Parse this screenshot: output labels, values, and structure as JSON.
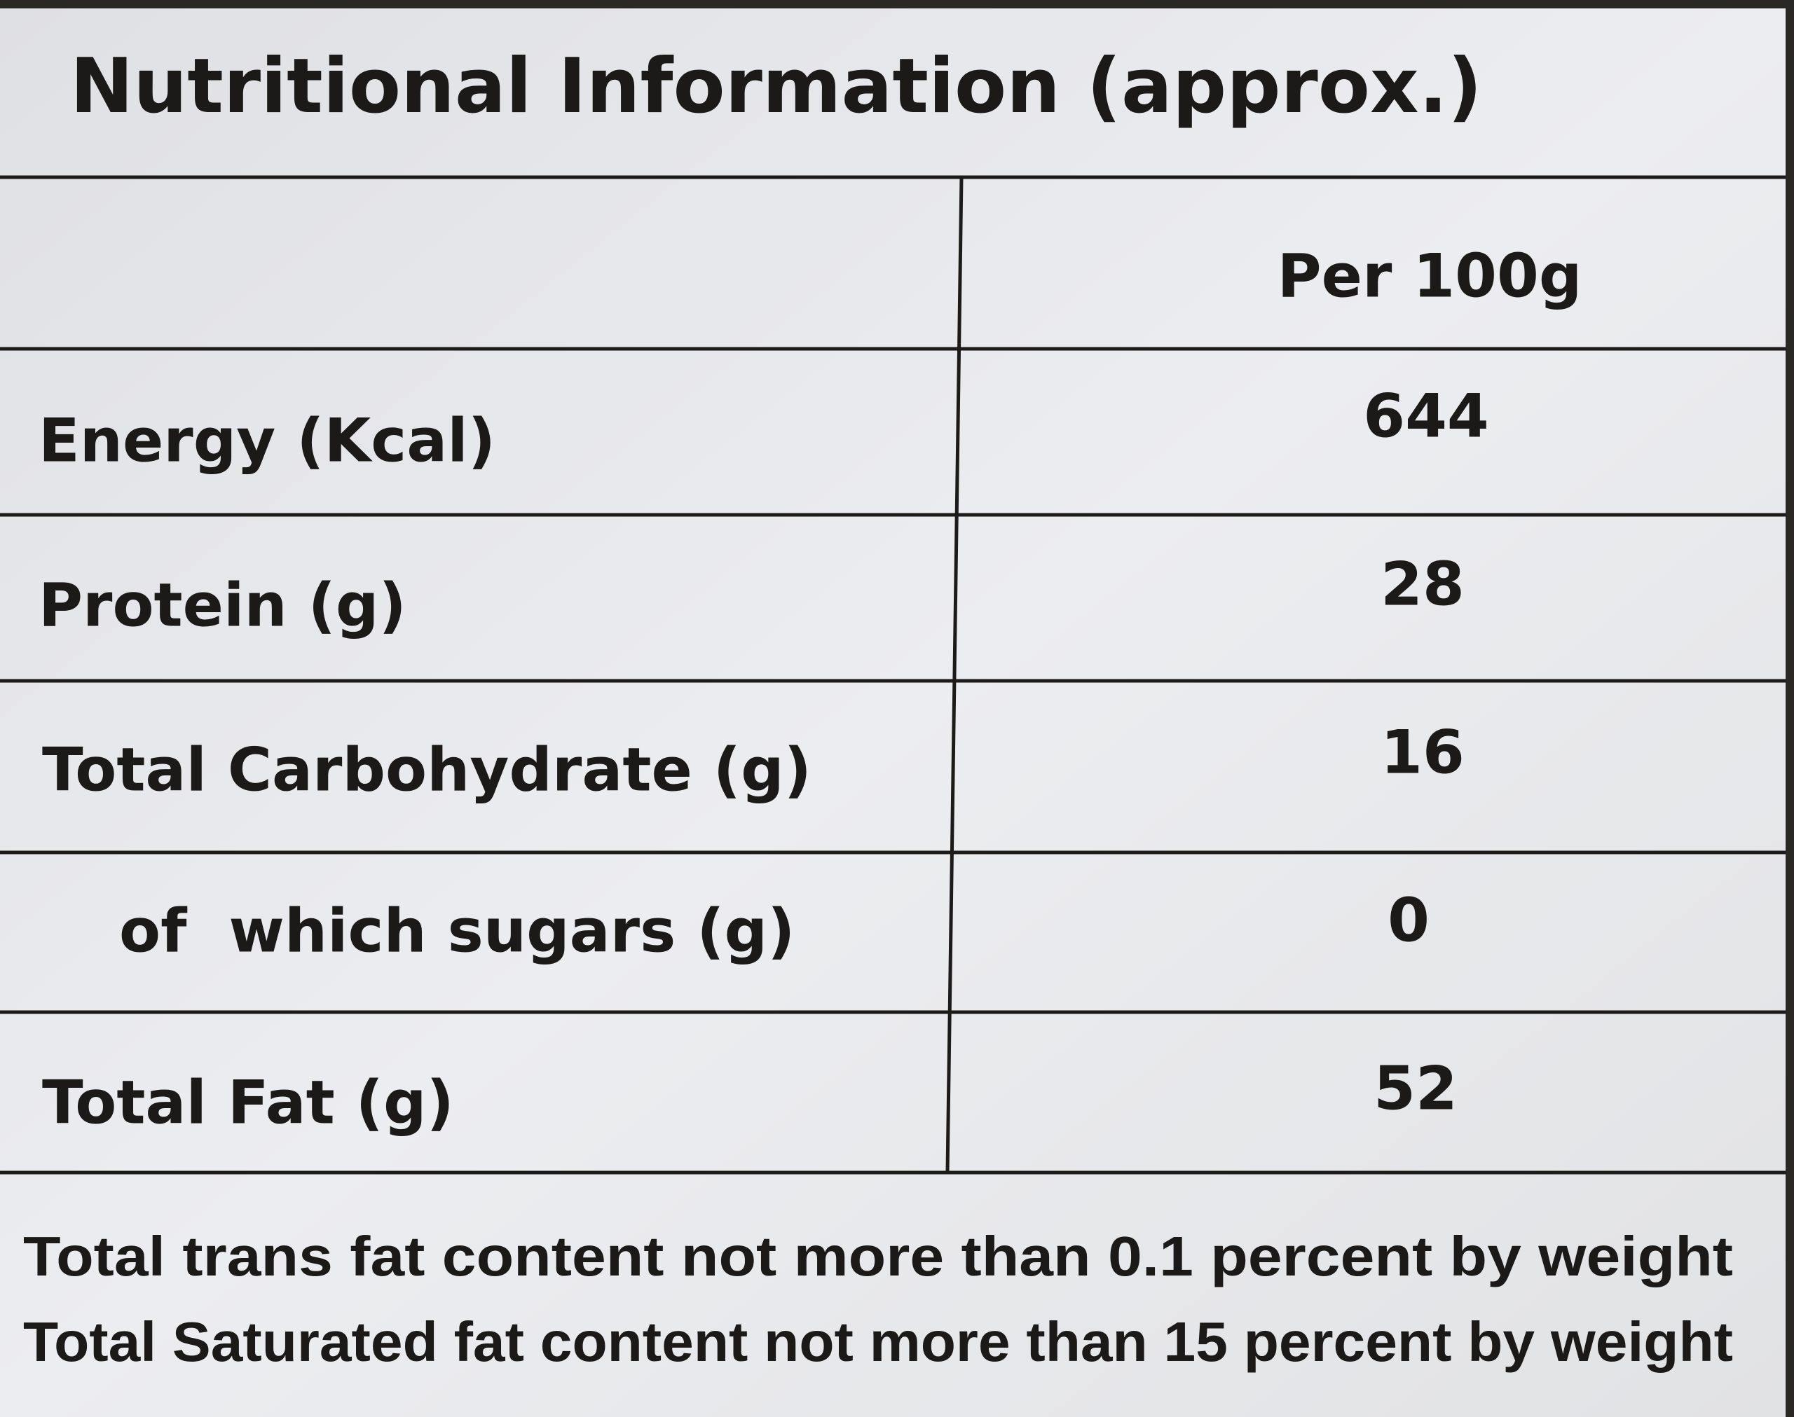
{
  "header": {
    "title": "Nutritional Information (approx.)"
  },
  "table": {
    "column_header": "Per 100g",
    "rows": [
      [
        "Energy (Kcal)",
        "644"
      ],
      [
        "Protein (g)",
        "28"
      ],
      [
        "Total Carbohydrate (g)",
        "16"
      ],
      [
        "of  which sugars (g)",
        "0"
      ],
      [
        "Total Fat (g)",
        "52"
      ]
    ]
  },
  "footnotes": [
    "Total trans fat content not more than 0.1 percent by weight",
    "Total Saturated fat content not more than 15 percent by weight"
  ]
}
